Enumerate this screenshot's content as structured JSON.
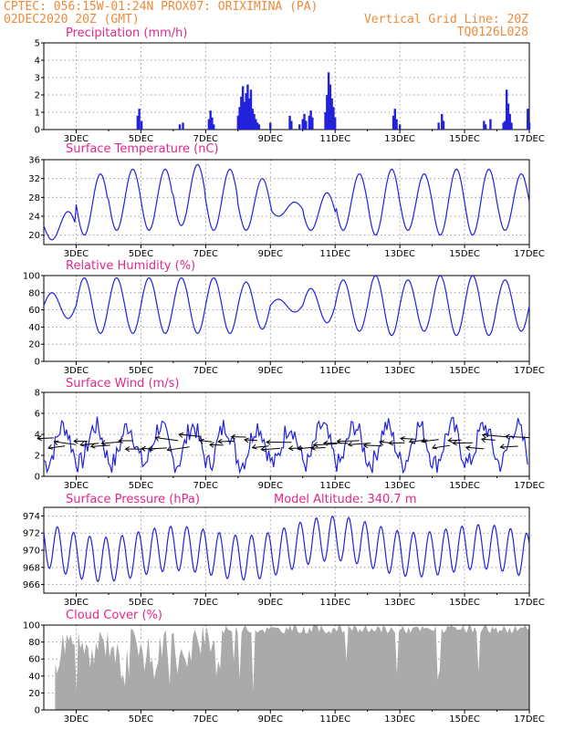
{
  "header": {
    "line1": "CPTEC:  056:15W-01:24N  PROX07: ORIXIMINA (PA)",
    "line2_left": "02DEC2020 20Z (GMT)",
    "line2_right": "Vertical Grid Line: 20Z",
    "line3_right": "TQ0126L028"
  },
  "colors": {
    "header": "#ee8a3a",
    "panel_title": "#e0288a",
    "series": "#2222dd",
    "cloud_fill": "#aaaaaa"
  },
  "chart_data": [
    {
      "type": "bar",
      "title": "Precipitation (mm/h)",
      "x_tick_labels": [
        "3DEC",
        "5DEC",
        "7DEC",
        "9DEC",
        "11DEC",
        "13DEC",
        "15DEC",
        "17DEC"
      ],
      "ylim": [
        0,
        5
      ],
      "y_ticks": [
        0,
        1,
        2,
        3,
        4,
        5
      ],
      "grid": true,
      "x_start_day": 2.83,
      "x_end_day": 17,
      "series": [
        {
          "values": [
            [
              4.9,
              0.8
            ],
            [
              4.95,
              1.2
            ],
            [
              5.02,
              0.5
            ],
            [
              6.2,
              0.3
            ],
            [
              6.3,
              0.4
            ],
            [
              7.1,
              0.6
            ],
            [
              7.15,
              1.1
            ],
            [
              7.2,
              0.7
            ],
            [
              7.25,
              0.3
            ],
            [
              8.0,
              0.8
            ],
            [
              8.05,
              1.3
            ],
            [
              8.1,
              1.9
            ],
            [
              8.15,
              2.5
            ],
            [
              8.2,
              1.6
            ],
            [
              8.25,
              2.1
            ],
            [
              8.3,
              2.6
            ],
            [
              8.35,
              1.8
            ],
            [
              8.4,
              2.3
            ],
            [
              8.45,
              1.2
            ],
            [
              8.5,
              0.9
            ],
            [
              8.55,
              0.6
            ],
            [
              8.6,
              0.4
            ],
            [
              8.65,
              0.3
            ],
            [
              9.0,
              0.4
            ],
            [
              9.6,
              0.8
            ],
            [
              9.65,
              0.5
            ],
            [
              9.9,
              0.3
            ],
            [
              10.0,
              0.6
            ],
            [
              10.05,
              0.9
            ],
            [
              10.1,
              0.5
            ],
            [
              10.2,
              0.8
            ],
            [
              10.25,
              1.1
            ],
            [
              10.3,
              0.7
            ],
            [
              10.7,
              1.0
            ],
            [
              10.75,
              2.0
            ],
            [
              10.8,
              3.3
            ],
            [
              10.85,
              2.6
            ],
            [
              10.9,
              1.8
            ],
            [
              10.95,
              1.3
            ],
            [
              11.0,
              0.7
            ],
            [
              12.8,
              0.8
            ],
            [
              12.85,
              1.2
            ],
            [
              12.9,
              0.6
            ],
            [
              13.0,
              0.3
            ],
            [
              14.2,
              0.4
            ],
            [
              14.3,
              0.9
            ],
            [
              14.35,
              0.5
            ],
            [
              15.6,
              0.5
            ],
            [
              15.65,
              0.3
            ],
            [
              15.8,
              0.6
            ],
            [
              16.2,
              0.4
            ],
            [
              16.25,
              0.5
            ],
            [
              16.3,
              2.3
            ],
            [
              16.35,
              1.5
            ],
            [
              16.4,
              0.9
            ],
            [
              16.45,
              0.4
            ],
            [
              16.95,
              1.2
            ],
            [
              17.0,
              0.4
            ]
          ]
        }
      ],
      "note_values": "pairs of [day, mm/h]"
    },
    {
      "type": "line",
      "title": "Surface Temperature (nC)",
      "x_tick_labels": [
        "3DEC",
        "5DEC",
        "7DEC",
        "9DEC",
        "11DEC",
        "13DEC",
        "15DEC",
        "17DEC"
      ],
      "ylim": [
        18,
        36
      ],
      "y_ticks": [
        20,
        24,
        28,
        32,
        36
      ],
      "grid": true,
      "daily_max": [
        25,
        33,
        34,
        34,
        35,
        34,
        32,
        27,
        29,
        33,
        34,
        33,
        34,
        34,
        33,
        32,
        28
      ],
      "daily_min": [
        19,
        20,
        21,
        21,
        22,
        21,
        21,
        24,
        21,
        21,
        20,
        21,
        20,
        20,
        21,
        21,
        27
      ]
    },
    {
      "type": "line",
      "title": "Relative Humidity (%)",
      "x_tick_labels": [
        "3DEC",
        "5DEC",
        "7DEC",
        "9DEC",
        "11DEC",
        "13DEC",
        "15DEC",
        "17DEC"
      ],
      "ylim": [
        0,
        100
      ],
      "y_ticks": [
        0,
        20,
        40,
        60,
        80,
        100
      ],
      "grid": true
    },
    {
      "type": "line",
      "title": "Surface Wind (m/s)",
      "x_tick_labels": [
        "3DEC",
        "5DEC",
        "7DEC",
        "9DEC",
        "11DEC",
        "13DEC",
        "15DEC",
        "17DEC"
      ],
      "ylim": [
        0,
        8
      ],
      "y_ticks": [
        0,
        2,
        4,
        6,
        8
      ],
      "grid": true
    },
    {
      "type": "line",
      "title": "Surface Pressure (hPa)",
      "annotation": "Model Altitude: 340.7 m",
      "x_tick_labels": [
        "3DEC",
        "5DEC",
        "7DEC",
        "9DEC",
        "11DEC",
        "13DEC",
        "15DEC",
        "17DEC"
      ],
      "ylim": [
        965,
        975
      ],
      "y_ticks": [
        966,
        968,
        970,
        972,
        974
      ],
      "grid": true
    },
    {
      "type": "area",
      "title": "Cloud Cover (%)",
      "x_tick_labels": [
        "3DEC",
        "5DEC",
        "7DEC",
        "9DEC",
        "11DEC",
        "13DEC",
        "15DEC",
        "17DEC"
      ],
      "ylim": [
        0,
        100
      ],
      "y_ticks": [
        0,
        20,
        40,
        60,
        80,
        100
      ],
      "grid": true
    }
  ]
}
